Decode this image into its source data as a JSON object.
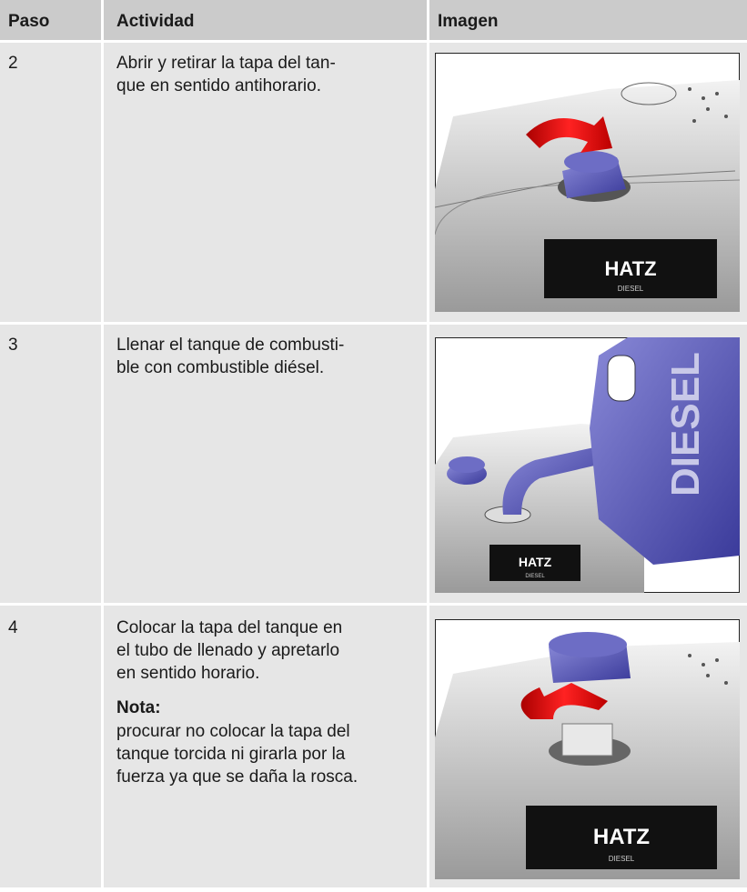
{
  "table": {
    "header": [
      "Paso",
      "Actividad",
      "Imagen"
    ],
    "rows": [
      {
        "step": "2",
        "activity": [
          "Abrir y retirar la tapa del tan-",
          "que en sentido antihorario."
        ],
        "image": {
          "labels": [
            "HATZ",
            "DIESEL"
          ]
        }
      },
      {
        "step": "3",
        "activity": [
          "Llenar el tanque de combusti-",
          "ble con combustible diésel."
        ],
        "image": {
          "labels": [
            "DIESEL",
            "HATZ",
            "DIESEL"
          ]
        }
      },
      {
        "step": "4",
        "activity": [
          "Colocar la tapa del tanque en",
          "el tubo de llenado y apretarlo",
          "en sentido horario."
        ],
        "note": {
          "title": "Nota:",
          "lines": [
            "procurar no colocar la tapa del",
            "tanque torcida ni girarla por la",
            "fuerza ya que se daña la rosca."
          ]
        },
        "image": {
          "labels": [
            "HATZ",
            "DIESEL"
          ]
        }
      }
    ]
  }
}
